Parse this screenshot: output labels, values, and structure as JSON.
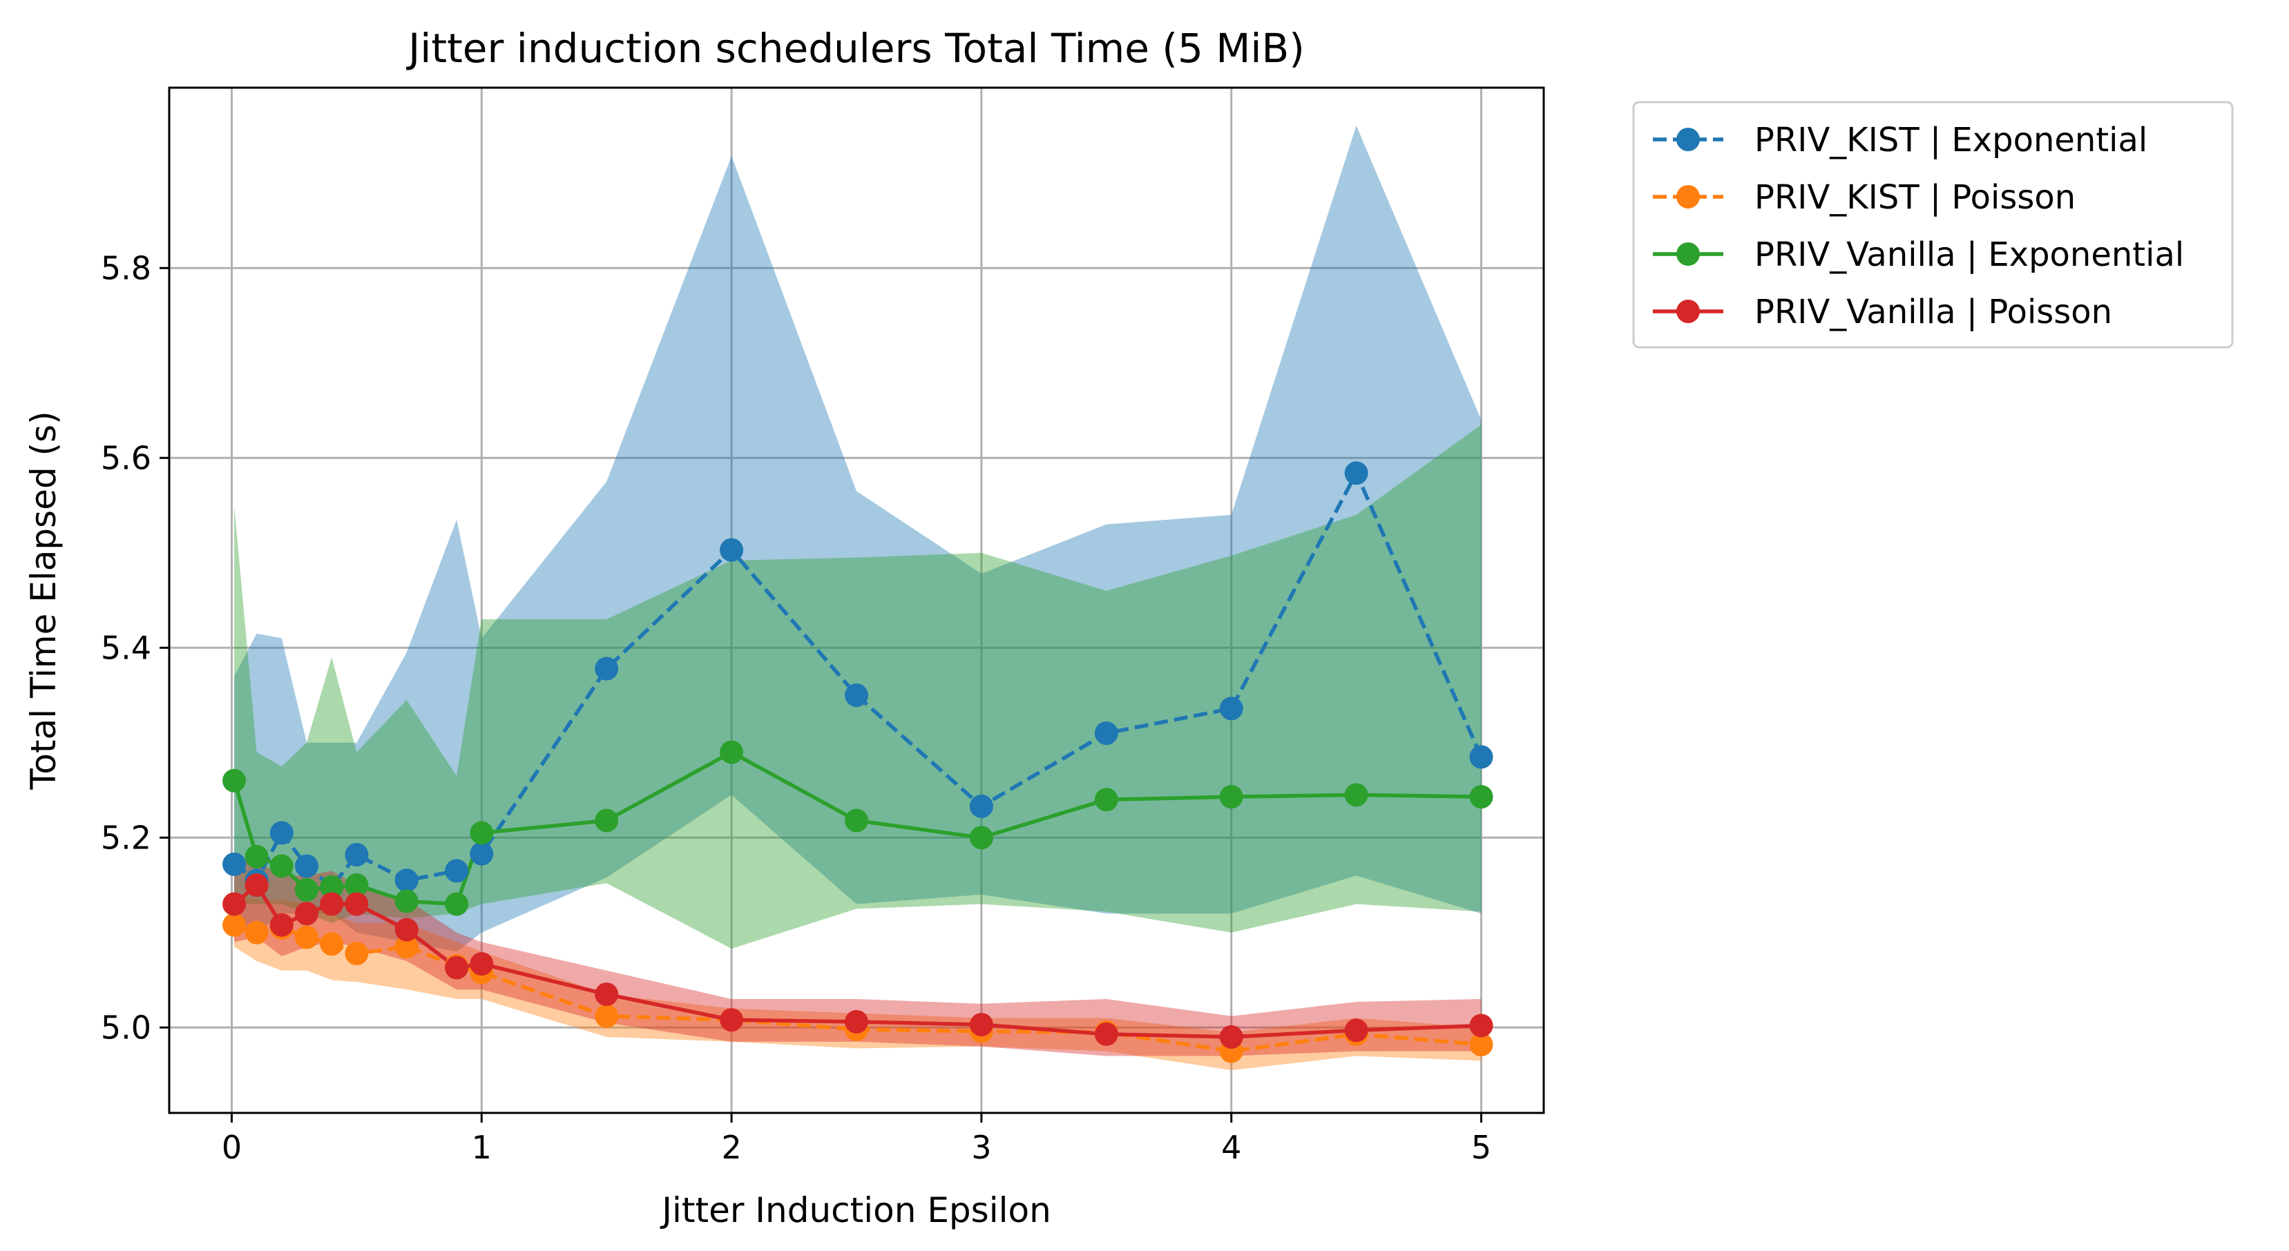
{
  "chart_data": {
    "type": "line",
    "title": "Jitter induction schedulers Total Time (5 MiB)",
    "xlabel": "Jitter Induction Epsilon",
    "ylabel": "Total Time Elapsed (s)",
    "xlim": [
      -0.25,
      5.25
    ],
    "ylim": [
      4.91,
      5.99
    ],
    "xticks": [
      0,
      1,
      2,
      3,
      4,
      5
    ],
    "xtick_labels": [
      "0",
      "1",
      "2",
      "3",
      "4",
      "5"
    ],
    "yticks": [
      5.0,
      5.2,
      5.4,
      5.6,
      5.8
    ],
    "ytick_labels": [
      "5.0",
      "5.2",
      "5.4",
      "5.6",
      "5.8"
    ],
    "grid": true,
    "legend_position": "outside upper right",
    "x": [
      0.01,
      0.1,
      0.2,
      0.3,
      0.4,
      0.5,
      0.7,
      0.9,
      1.0,
      1.5,
      2.0,
      2.5,
      3.0,
      3.5,
      4.0,
      4.5,
      5.0
    ],
    "series": [
      {
        "name": "PRIV_KIST | Exponential",
        "color": "#1f77b4",
        "linestyle": "dashed",
        "marker": "circle",
        "values": [
          5.172,
          5.155,
          5.205,
          5.17,
          5.148,
          5.182,
          5.155,
          5.165,
          5.183,
          5.378,
          5.503,
          5.35,
          5.233,
          5.31,
          5.336,
          5.584,
          5.285
        ],
        "band_upper": [
          5.37,
          5.415,
          5.41,
          5.3,
          5.3,
          5.3,
          5.395,
          5.535,
          5.41,
          5.575,
          5.918,
          5.565,
          5.478,
          5.53,
          5.54,
          5.95,
          5.64
        ],
        "band_lower": [
          5.11,
          5.1,
          5.12,
          5.12,
          5.12,
          5.1,
          5.09,
          5.08,
          5.1,
          5.158,
          5.245,
          5.13,
          5.14,
          5.12,
          5.12,
          5.16,
          5.12
        ]
      },
      {
        "name": "PRIV_KIST | Poisson",
        "color": "#ff7f0e",
        "linestyle": "dashed",
        "marker": "circle",
        "values": [
          5.108,
          5.1,
          5.105,
          5.095,
          5.088,
          5.078,
          5.085,
          5.065,
          5.058,
          5.012,
          5.008,
          4.998,
          4.996,
          4.995,
          4.975,
          4.993,
          4.982
        ],
        "band_upper": [
          5.14,
          5.135,
          5.135,
          5.13,
          5.12,
          5.11,
          5.11,
          5.09,
          5.08,
          5.035,
          5.02,
          5.015,
          5.01,
          5.01,
          4.995,
          5.01,
          5.0
        ],
        "band_lower": [
          5.085,
          5.07,
          5.06,
          5.06,
          5.05,
          5.048,
          5.04,
          5.03,
          5.03,
          4.99,
          4.985,
          4.978,
          4.98,
          4.975,
          4.955,
          4.97,
          4.965
        ]
      },
      {
        "name": "PRIV_Vanilla | Exponential",
        "color": "#2ca02c",
        "linestyle": "solid",
        "marker": "circle",
        "values": [
          5.26,
          5.18,
          5.17,
          5.145,
          5.148,
          5.15,
          5.133,
          5.13,
          5.205,
          5.218,
          5.29,
          5.218,
          5.2,
          5.24,
          5.243,
          5.245,
          5.243
        ],
        "band_upper": [
          5.55,
          5.29,
          5.275,
          5.3,
          5.39,
          5.29,
          5.345,
          5.265,
          5.43,
          5.43,
          5.492,
          5.495,
          5.5,
          5.46,
          5.497,
          5.54,
          5.635
        ],
        "band_lower": [
          5.13,
          5.13,
          5.13,
          5.12,
          5.11,
          5.12,
          5.115,
          5.12,
          5.13,
          5.152,
          5.083,
          5.125,
          5.13,
          5.122,
          5.1,
          5.13,
          5.122
        ]
      },
      {
        "name": "PRIV_Vanilla | Poisson",
        "color": "#d62728",
        "linestyle": "solid",
        "marker": "circle",
        "values": [
          5.13,
          5.15,
          5.108,
          5.12,
          5.13,
          5.13,
          5.103,
          5.063,
          5.067,
          5.035,
          5.008,
          5.006,
          5.003,
          4.993,
          4.99,
          4.997,
          5.002
        ],
        "band_upper": [
          5.18,
          5.175,
          5.16,
          5.16,
          5.165,
          5.15,
          5.135,
          5.1,
          5.09,
          5.06,
          5.03,
          5.03,
          5.025,
          5.03,
          5.012,
          5.027,
          5.03
        ],
        "band_lower": [
          5.09,
          5.095,
          5.075,
          5.085,
          5.09,
          5.085,
          5.07,
          5.04,
          5.04,
          5.005,
          4.985,
          4.985,
          4.98,
          4.97,
          4.97,
          4.975,
          4.975
        ]
      }
    ]
  }
}
